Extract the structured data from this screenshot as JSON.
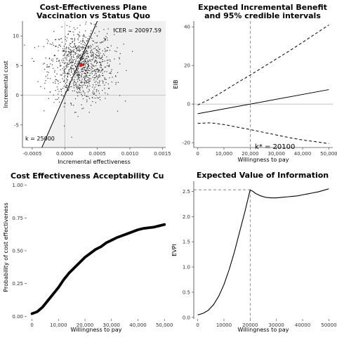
{
  "chart_data": [
    {
      "type": "scatter",
      "title_lines": [
        "Cost-Effectiveness Plane",
        "Vaccination vs Status Quo"
      ],
      "xlabel": "Incremental effectiveness",
      "ylabel": "Incremental cost",
      "xlim": [
        -0.00065,
        0.00155
      ],
      "ylim": [
        -8.8,
        12.5
      ],
      "xticks": [
        -0.0005,
        0,
        0.0005,
        0.001,
        0.0015
      ],
      "xtick_labels": [
        "-0.0005",
        "0.0000",
        "0.0005",
        "0.0010",
        "0.0015"
      ],
      "yticks": [
        -5,
        0,
        5,
        10
      ],
      "ytick_labels": [
        "-5",
        "0",
        "5",
        "10"
      ],
      "cloud": {
        "center_x": 0.00025,
        "center_y": 5,
        "sd_x": 0.00025,
        "sd_y": 3,
        "n": 1000,
        "color": "#333333"
      },
      "mean_point": {
        "x": 0.00025,
        "y": 5.1,
        "color": "#e41a1c"
      },
      "icer_annotation": "ICER = 20097.59",
      "icer_color": "#e41a1c",
      "wtp_line": {
        "slope": 25000,
        "label": "k = 25000"
      },
      "shaded_region_color": "#f0f0f0",
      "grid": false
    },
    {
      "type": "line",
      "title_lines": [
        "Expected Incremental Benefit",
        "and 95% credible intervals"
      ],
      "xlabel": "Willingness to pay",
      "ylabel": "EIB",
      "xlim": [
        -1500,
        51500
      ],
      "ylim": [
        -22.5,
        43
      ],
      "xticks": [
        0,
        10000,
        20000,
        30000,
        40000,
        50000
      ],
      "xtick_labels": [
        "0",
        "10,000",
        "20,000",
        "30,000",
        "40,000",
        "50,000"
      ],
      "yticks": [
        -20,
        0,
        20,
        40
      ],
      "ytick_labels": [
        "-20",
        "0",
        "20",
        "40"
      ],
      "series": [
        {
          "role": "upper",
          "style": "dashed",
          "x": [
            0,
            5000,
            10000,
            15000,
            20000,
            25000,
            30000,
            35000,
            40000,
            45000,
            50000
          ],
          "y": [
            -0.5,
            2.8,
            6.8,
            11,
            15,
            19.2,
            23.4,
            27.6,
            32,
            36.5,
            41
          ]
        },
        {
          "role": "mean",
          "style": "solid",
          "x": [
            0,
            50000
          ],
          "y": [
            -5,
            7.5
          ]
        },
        {
          "role": "lower",
          "style": "dashed",
          "x": [
            0,
            5000,
            10000,
            15000,
            20000,
            25000,
            30000,
            35000,
            40000,
            45000,
            50000
          ],
          "y": [
            -10,
            -9.7,
            -10.6,
            -11.9,
            -13.2,
            -14.6,
            -16,
            -17.4,
            -18.6,
            -19.5,
            -20.5
          ]
        }
      ],
      "break_even": 20100,
      "break_even_label": "k* = 20100",
      "grid": false
    },
    {
      "type": "line",
      "title": "Cost Effectiveness Acceptability Cu",
      "xlabel": "Willingness to pay",
      "ylabel": "Probability of cost effectiveness",
      "xlim": [
        -2000,
        51000
      ],
      "ylim": [
        -0.02,
        1.03
      ],
      "xticks": [
        0,
        10000,
        20000,
        30000,
        40000,
        50000
      ],
      "xtick_labels": [
        "0",
        "10,000",
        "20,000",
        "30,000",
        "40,000",
        "50,000"
      ],
      "yticks": [
        0,
        0.25,
        0.5,
        0.75,
        1
      ],
      "ytick_labels": [
        "0.00",
        "0.25",
        "0.50",
        "0.75",
        "1.00"
      ],
      "x": [
        0,
        2000,
        4000,
        6000,
        8000,
        10000,
        12000,
        14000,
        16000,
        18000,
        20000,
        22000,
        24000,
        26000,
        28000,
        30000,
        32000,
        34000,
        36000,
        38000,
        40000,
        42000,
        44000,
        46000,
        48000,
        50000
      ],
      "y": [
        0.02,
        0.035,
        0.07,
        0.12,
        0.17,
        0.22,
        0.28,
        0.33,
        0.37,
        0.41,
        0.45,
        0.48,
        0.51,
        0.53,
        0.56,
        0.58,
        0.6,
        0.615,
        0.63,
        0.645,
        0.66,
        0.67,
        0.675,
        0.68,
        0.69,
        0.7
      ],
      "grid": false
    },
    {
      "type": "line",
      "title": "Expected Value of Information",
      "xlabel": "Willingness to pay",
      "ylabel": "EVPI",
      "xlim": [
        -1500,
        51500
      ],
      "ylim": [
        -0.03,
        2.7
      ],
      "xticks": [
        0,
        10000,
        20000,
        30000,
        40000,
        50000
      ],
      "xtick_labels": [
        "0",
        "10000",
        "20000",
        "30000",
        "40000",
        "50000"
      ],
      "yticks": [
        0,
        0.5,
        1,
        1.5,
        2,
        2.5
      ],
      "ytick_labels": [
        "0.0",
        "0.5",
        "1.0",
        "1.5",
        "2.0",
        "2.5"
      ],
      "x": [
        0,
        2000,
        4000,
        6000,
        8000,
        10000,
        12000,
        14000,
        16000,
        18000,
        20000,
        21000,
        22000,
        24000,
        26000,
        28000,
        30000,
        32000,
        34000,
        36000,
        38000,
        40000,
        42000,
        44000,
        46000,
        48000,
        50000
      ],
      "y": [
        0.05,
        0.08,
        0.14,
        0.25,
        0.42,
        0.65,
        0.95,
        1.3,
        1.7,
        2.1,
        2.53,
        2.5,
        2.46,
        2.41,
        2.38,
        2.37,
        2.37,
        2.38,
        2.39,
        2.4,
        2.41,
        2.43,
        2.45,
        2.47,
        2.49,
        2.52,
        2.55
      ],
      "peak": {
        "x": 20000,
        "y": 2.53
      },
      "grid": false
    }
  ]
}
